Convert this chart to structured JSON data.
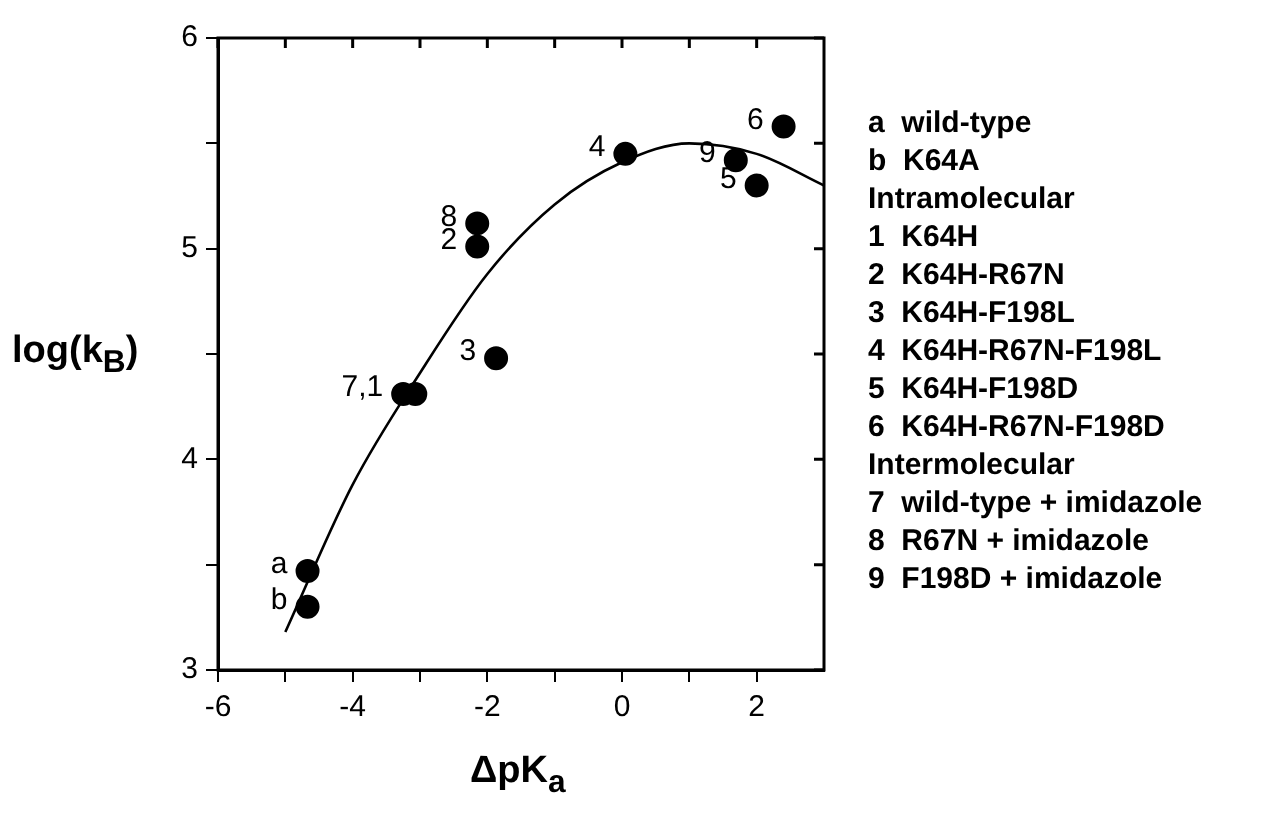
{
  "chart_data": {
    "type": "scatter",
    "xlabel": "ΔpK$_{a}$",
    "ylabel": "log(k$_{B}$)",
    "xlim": [
      -6,
      3
    ],
    "ylim": [
      3,
      6
    ],
    "xticks": [
      -6,
      {
        "value": -5,
        "label": null
      },
      -4,
      {
        "value": -3,
        "label": null
      },
      -2,
      {
        "value": -1,
        "label": null
      },
      0,
      {
        "value": 1,
        "label": null
      },
      2
    ],
    "yticks": [
      3,
      {
        "value": 3.5,
        "label": null
      },
      4,
      {
        "value": 4.5,
        "label": null
      },
      5,
      {
        "value": 5.5,
        "label": null
      },
      6
    ],
    "grid": false,
    "legend": false,
    "marker": "circle",
    "series": [
      {
        "type": "scatter",
        "color": "#000000",
        "x": [
          -4.67,
          -4.67,
          -3.25,
          -3.07,
          -2.15,
          -2.15,
          -1.87,
          0.05,
          2.4,
          1.69,
          2.0
        ],
        "values": [
          3.47,
          3.3,
          4.31,
          4.31,
          5.12,
          5.01,
          4.48,
          5.45,
          5.58,
          5.42,
          5.3
        ]
      },
      {
        "type": "line",
        "color": "#000000",
        "marker": "none",
        "x": [
          -5,
          -4,
          -3,
          -2,
          -1,
          0,
          1,
          2,
          3
        ],
        "values": [
          3.18,
          3.88,
          4.41,
          4.88,
          5.21,
          5.41,
          5.5,
          5.45,
          5.3
        ]
      }
    ],
    "annotations": [
      {
        "text": "a",
        "x": -4.67,
        "y": 3.47
      },
      {
        "text": "b",
        "x": -4.67,
        "y": 3.3
      },
      {
        "text": "7,1",
        "x": -3.25,
        "y": 4.31
      },
      {
        "text": "8",
        "x": -2.15,
        "y": 5.12
      },
      {
        "text": "2",
        "x": -2.15,
        "y": 5.01
      },
      {
        "text": "3",
        "x": -1.87,
        "y": 4.48
      },
      {
        "text": "4",
        "x": 0.05,
        "y": 5.45
      },
      {
        "text": "6",
        "x": 2.4,
        "y": 5.58
      },
      {
        "text": "9",
        "x": 1.69,
        "y": 5.42
      },
      {
        "text": "5",
        "x": 2.0,
        "y": 5.3
      },
      "a  wild-type",
      "b  K64A",
      "Intramolecular",
      "1  K64H",
      "2  K64H-R67N",
      "3  K64H-F198L",
      "4  K64H-R67N-F198L",
      "5  K64H-F198D",
      "6  K64H-R67N-F198D",
      "Intermolecular",
      "7  wild-type + imidazole",
      "8  R67N + imidazole",
      "9  F198D + imidazole"
    ]
  }
}
